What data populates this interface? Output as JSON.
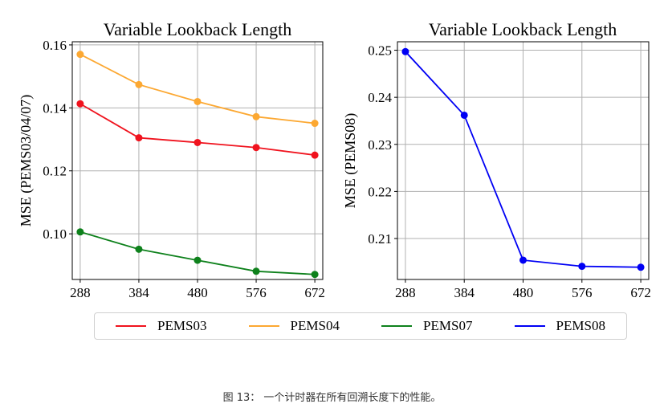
{
  "chart_data": [
    {
      "type": "line",
      "title": "Variable Lookback Length",
      "xlabel": "",
      "ylabel": "MSE (PEMS03/04/07)",
      "x": [
        288,
        384,
        480,
        576,
        672
      ],
      "xticks": [
        "288",
        "384",
        "480",
        "576",
        "672"
      ],
      "yticks": [
        "0.10",
        "0.12",
        "0.14",
        "0.16"
      ],
      "ytick_values": [
        0.1,
        0.12,
        0.14,
        0.16
      ],
      "ylim": [
        0.0855,
        0.161
      ],
      "grid": true,
      "series": [
        {
          "name": "PEMS03",
          "color": "#f0131e",
          "values": [
            0.1413,
            0.1305,
            0.129,
            0.1274,
            0.125
          ]
        },
        {
          "name": "PEMS04",
          "color": "#fca832",
          "values": [
            0.157,
            0.1474,
            0.142,
            0.1372,
            0.1351
          ]
        },
        {
          "name": "PEMS07",
          "color": "#0e811c",
          "values": [
            0.1006,
            0.0951,
            0.0916,
            0.0881,
            0.0871
          ]
        }
      ]
    },
    {
      "type": "line",
      "title": "Variable Lookback Length",
      "xlabel": "",
      "ylabel": "MSE (PEMS08)",
      "x": [
        288,
        384,
        480,
        576,
        672
      ],
      "xticks": [
        "288",
        "384",
        "480",
        "576",
        "672"
      ],
      "yticks": [
        "0.21",
        "0.22",
        "0.23",
        "0.24",
        "0.25"
      ],
      "ytick_values": [
        0.21,
        0.22,
        0.23,
        0.24,
        0.25
      ],
      "ylim": [
        0.2013,
        0.2518
      ],
      "grid": true,
      "series": [
        {
          "name": "PEMS08",
          "color": "#0000f4",
          "values": [
            0.2497,
            0.2362,
            0.2054,
            0.2041,
            0.2039
          ]
        }
      ]
    }
  ],
  "legend": {
    "placement": "bottom-center",
    "entries": [
      {
        "name": "PEMS03",
        "color": "#f0131e"
      },
      {
        "name": "PEMS04",
        "color": "#fca832"
      },
      {
        "name": "PEMS07",
        "color": "#0e811c"
      },
      {
        "name": "PEMS08",
        "color": "#0000f4"
      }
    ]
  },
  "caption": "图 13： 一个计时器在所有回溯长度下的性能。"
}
